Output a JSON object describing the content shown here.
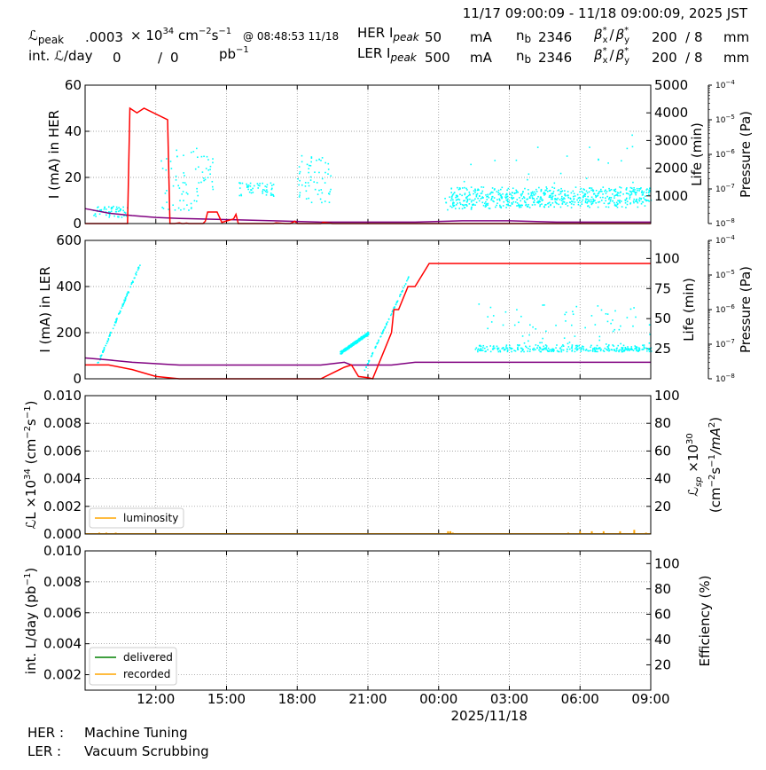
{
  "header": {
    "time_range": "11/17 09:00:09 - 11/18 09:00:09, 2025 JST",
    "lum_peak_label": "peak",
    "lum_peak_value": ".0003",
    "lum_unit_mult": "× 10",
    "lum_unit_exp": "34",
    "lum_unit_cm": "cm",
    "lum_unit_cm_exp": "−2",
    "lum_unit_s": "s",
    "lum_unit_s_exp": "−1",
    "lum_peak_time": "@ 08:48:53 11/18",
    "int_lum_label": "int. ",
    "int_lum_per_day": "/day",
    "int_lum_delivered": "0",
    "int_lum_sep": "/",
    "int_lum_recorded": "0",
    "int_lum_unit": "pb",
    "int_lum_unit_exp": "−1",
    "her_label": "HER I",
    "ler_label": "LER I",
    "peak_sub": "peak",
    "her_current": "50",
    "ler_current": "500",
    "current_unit": "mA",
    "nb_label": "n",
    "nb_sub": "b",
    "her_nb": "2346",
    "ler_nb": "2346",
    "beta_x": "β",
    "beta_x_sub": "x",
    "beta_sep": "/",
    "beta_y": "β",
    "beta_y_sub": "y",
    "star": "*",
    "her_beta": "200  / 8",
    "ler_beta": "200  / 8",
    "beta_unit": "mm"
  },
  "status": {
    "her_label": "HER :",
    "her_value": "Machine Tuning",
    "ler_label": "LER :",
    "ler_value": "Vacuum Scrubbing"
  },
  "colors": {
    "current": "#ff0000",
    "pressure": "#800080",
    "lifetime": "#00ffff",
    "luminosity": "#ffa500",
    "delivered": "#008000",
    "recorded": "#ffa500"
  },
  "chart_data": [
    {
      "type": "line",
      "panel": "her",
      "ylabel": "I (mA) in HER",
      "ylabel2": "Life (min)",
      "ylabel3": "Pressure (Pa)",
      "ylim": [
        0,
        60
      ],
      "y_ticks": [
        "0",
        "20",
        "40",
        "60"
      ],
      "y2_ticks": [
        "1000",
        "2000",
        "3000",
        "4000",
        "5000"
      ],
      "y3_ticks": [
        "10",
        "10",
        "10",
        "10",
        "10"
      ],
      "y3_exps": [
        "−8",
        "−7",
        "−6",
        "−5",
        "−4"
      ],
      "series": [
        {
          "name": "current",
          "x": [
            0,
            0.8,
            1.5,
            1.8,
            1.9,
            2.2,
            2.5,
            3.5,
            3.6,
            3.8,
            4.0,
            4.1,
            4.2,
            4.3,
            4.4,
            4.5,
            5.0,
            5.1,
            5.2,
            5.4,
            5.6,
            5.8,
            6.3,
            6.4,
            6.5,
            7.0,
            7.1,
            7.3,
            8.0,
            8.1,
            8.5,
            8.6,
            8.7,
            8.9,
            9.0,
            9.1,
            9.4,
            9.5,
            10.0,
            10.1,
            10.5,
            11.0,
            11.2,
            11.4,
            11.6,
            11.7,
            11.8,
            12.0,
            12.1,
            12.3,
            12.8,
            12.9,
            14.0,
            15.0,
            15.1,
            15.5,
            15.6,
            15.8,
            16.0,
            16.5,
            17.0,
            17.2,
            17.5,
            17.6,
            18.0,
            19.0,
            20.0,
            21.0,
            22.0,
            23.0,
            24.0
          ],
          "y": [
            0,
            0,
            0,
            0,
            50,
            48,
            50,
            45,
            0,
            0,
            0.3,
            0,
            0,
            0.2,
            0,
            0,
            0,
            1,
            5,
            5,
            5,
            0.5,
            2,
            4,
            0,
            0,
            0,
            0,
            0,
            0.3,
            0,
            0,
            0,
            1,
            0,
            0,
            0,
            0,
            0,
            0.5,
            0,
            0,
            0,
            0,
            0,
            0,
            0,
            0,
            0,
            0,
            0,
            0,
            0,
            0,
            0,
            0,
            0,
            0,
            0,
            0,
            0,
            0,
            0,
            0,
            0,
            0,
            0,
            0,
            0,
            0,
            0
          ]
        },
        {
          "name": "pressure",
          "x": [
            0,
            1,
            2,
            3,
            4,
            6,
            8,
            10,
            12,
            14,
            16,
            18,
            20,
            22,
            24
          ],
          "y": [
            2.7e-08,
            2e-08,
            1.7e-08,
            1.5e-08,
            1.4e-08,
            1.3e-08,
            1.2e-08,
            1.1e-08,
            1.1e-08,
            1.1e-08,
            1.2e-08,
            1.2e-08,
            1.1e-08,
            1.1e-08,
            1.1e-08
          ]
        },
        {
          "name": "lifetime",
          "type": "scatter"
        }
      ]
    },
    {
      "type": "line",
      "panel": "ler",
      "ylabel": "I (mA) in LER",
      "ylabel2": "Life (min)",
      "ylabel3": "Pressure (Pa)",
      "ylim": [
        0,
        600
      ],
      "y_ticks": [
        "0",
        "200",
        "400",
        "600"
      ],
      "y2_ticks": [
        "25",
        "50",
        "75",
        "100"
      ],
      "y3_ticks": [
        "10",
        "10",
        "10",
        "10",
        "10"
      ],
      "y3_exps": [
        "−8",
        "−7",
        "−6",
        "−5",
        "−4"
      ],
      "series": [
        {
          "name": "current",
          "x": [
            0,
            1,
            2,
            3,
            4,
            10,
            11,
            11.3,
            11.6,
            12,
            12.2,
            13,
            13.1,
            13.3,
            13.7,
            14,
            14.6,
            14.7,
            15.0,
            15.5,
            16.0,
            16.3,
            16.7,
            17.0,
            17.3,
            18.0,
            18.3,
            19.0,
            20.0,
            21.0,
            22.0,
            23.0,
            24.0
          ],
          "y": [
            60,
            60,
            40,
            10,
            0,
            0,
            50,
            60,
            10,
            5,
            0,
            200,
            300,
            300,
            400,
            400,
            500,
            500,
            500,
            500,
            500,
            500,
            500,
            500,
            500,
            500,
            500,
            500,
            500,
            500,
            500,
            500,
            500
          ]
        },
        {
          "name": "pressure",
          "x": [
            0,
            1,
            2,
            4,
            6,
            8,
            10,
            11,
            11.3,
            12,
            13,
            14,
            15,
            16,
            18,
            20,
            22,
            24
          ],
          "y": [
            4e-08,
            3.5e-08,
            3e-08,
            2.5e-08,
            2.5e-08,
            2.5e-08,
            2.5e-08,
            3e-08,
            2.5e-08,
            2.5e-08,
            2.5e-08,
            3e-08,
            3e-08,
            3e-08,
            3e-08,
            3e-08,
            3e-08,
            3e-08
          ]
        },
        {
          "name": "lifetime",
          "type": "scatter"
        }
      ]
    },
    {
      "type": "line",
      "panel": "luminosity",
      "ylabel": "L ×10",
      "ylabel_exp": "34",
      "ylabel_unit": " (cm",
      "ylabel_unit_exp": "−2",
      "ylabel_unit_s": "s",
      "ylabel_unit_s_exp": "−1",
      "ylabel_close": ")",
      "ylabel2": "L",
      "ylabel2_sub": "sp",
      "ylabel2_mult": " ×10",
      "ylabel2_exp": "30",
      "ylabel2_line2": "(cm",
      "ylabel2_line2_exp": "−2",
      "ylabel2_line2_s": "s",
      "ylabel2_line2_s_exp": "−1",
      "ylabel2_line2_end": "/mA",
      "ylabel2_line2_end_exp": "2",
      "ylabel2_line2_close": ")",
      "ylim": [
        0,
        0.01
      ],
      "y_ticks": [
        "0.000",
        "0.002",
        "0.004",
        "0.006",
        "0.008",
        "0.010"
      ],
      "y2_ticks": [
        "20",
        "40",
        "60",
        "80",
        "100"
      ],
      "legend": [
        "luminosity"
      ],
      "series": [
        {
          "name": "luminosity",
          "x": [
            0.6,
            0.9,
            1.3,
            5.0,
            6.3,
            7.3,
            15.4,
            15.5,
            15.6,
            16.8,
            17.0,
            17.5,
            18.7,
            19.3,
            20.5,
            21.0,
            21.5,
            22.0,
            22.7,
            23.3,
            23.8
          ],
          "y": [
            0.0001,
            0.0001,
            0.0001,
            5e-05,
            5e-05,
            5e-05,
            0.0002,
            0.0002,
            0.0001,
            5e-05,
            5e-05,
            5e-05,
            5e-05,
            5e-05,
            0.0001,
            0.0002,
            0.0002,
            0.0002,
            0.0002,
            0.0003,
            0.0001
          ]
        }
      ]
    },
    {
      "type": "line",
      "panel": "integrated",
      "ylabel": "int. L/day (pb",
      "ylabel_exp": "−1",
      "ylabel_close": ")",
      "ylabel2": "Efficiency (%)",
      "ylim": [
        0.001,
        0.01
      ],
      "y_ticks": [
        "0.002",
        "0.004",
        "0.006",
        "0.008",
        "0.010"
      ],
      "y2_ticks": [
        "20",
        "40",
        "60",
        "80",
        "100"
      ],
      "legend": [
        "delivered",
        "recorded"
      ],
      "series": [
        {
          "name": "delivered",
          "x": [],
          "y": []
        },
        {
          "name": "recorded",
          "x": [],
          "y": []
        }
      ]
    }
  ],
  "x_axis": {
    "ticks": [
      "12:00",
      "15:00",
      "18:00",
      "21:00",
      "00:00",
      "03:00",
      "06:00",
      "09:00"
    ],
    "tick_hours": [
      3,
      6,
      9,
      12,
      15,
      18,
      21,
      24
    ],
    "xlim_hours": [
      0,
      24
    ],
    "date_label": "2025/11/18"
  }
}
